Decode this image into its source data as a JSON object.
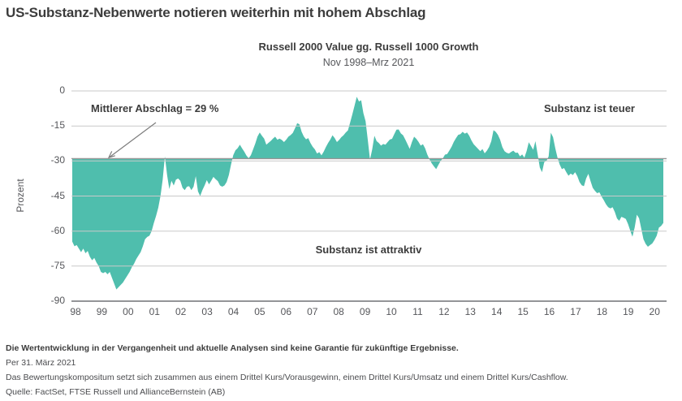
{
  "title": "US-Substanz-Nebenwerte notieren weiterhin mit hohem Abschlag",
  "chart": {
    "subtitle": "Russell 2000 Value gg. Russell 1000 Growth",
    "period": "Nov 1998–Mrz 2021",
    "ylabel": "Prozent",
    "mean_annotation": "Mittlerer Abschlag = 29 %",
    "label_expensive": "Substanz ist teuer",
    "label_attractive": "Substanz ist attraktiv"
  },
  "chart_data": {
    "type": "area",
    "title": "Russell 2000 Value gg. Russell 1000 Growth",
    "subtitle": "Nov 1998–Mrz 2021",
    "ylabel": "Prozent",
    "ylim": [
      -90,
      0
    ],
    "yticks": [
      0,
      -15,
      -30,
      -45,
      -60,
      -75,
      -90
    ],
    "xtick_labels": [
      "98",
      "99",
      "00",
      "01",
      "02",
      "03",
      "04",
      "05",
      "06",
      "07",
      "08",
      "09",
      "10",
      "11",
      "12",
      "13",
      "14",
      "15",
      "16",
      "17",
      "18",
      "19",
      "20"
    ],
    "baseline_mean": -29,
    "period_start": "Nov 1998",
    "period_end": "Mrz 2021",
    "frequency": "monthly",
    "values": [
      -64.5,
      -66.5,
      -66,
      -67.5,
      -69,
      -67.5,
      -69.5,
      -68.5,
      -71,
      -72.5,
      -71.5,
      -73.5,
      -75,
      -77.5,
      -78,
      -77.5,
      -78.5,
      -77.5,
      -80,
      -82.5,
      -85,
      -84,
      -83,
      -82,
      -80.5,
      -79,
      -77.5,
      -75.5,
      -74,
      -72,
      -70.5,
      -69,
      -66.5,
      -63.5,
      -62.5,
      -62,
      -60,
      -56.5,
      -53.5,
      -50,
      -45,
      -38,
      -28,
      -36,
      -42,
      -38.5,
      -40.5,
      -38,
      -37.5,
      -38.5,
      -41.5,
      -42.5,
      -41,
      -40.8,
      -42.5,
      -41,
      -36.5,
      -43,
      -45,
      -42.5,
      -40.5,
      -38.2,
      -40,
      -38.5,
      -36.8,
      -37.8,
      -38.6,
      -40.5,
      -41,
      -40.5,
      -39,
      -36,
      -31.5,
      -27.5,
      -25.4,
      -24.5,
      -23,
      -24.6,
      -26,
      -27.7,
      -28.8,
      -27.5,
      -25,
      -22.5,
      -19.5,
      -17.8,
      -19.2,
      -20.4,
      -23,
      -22.2,
      -21.4,
      -20.4,
      -19.6,
      -20.9,
      -20.4,
      -21,
      -21.9,
      -20.9,
      -19.6,
      -18.9,
      -18,
      -16,
      -13.8,
      -14.3,
      -17.5,
      -19.5,
      -20.7,
      -20.2,
      -22.3,
      -23.9,
      -25,
      -26.8,
      -26.2,
      -27.6,
      -26,
      -24,
      -22.3,
      -20.8,
      -19,
      -20.2,
      -21.9,
      -21,
      -19.8,
      -19,
      -17.8,
      -16.9,
      -13.5,
      -10,
      -6.3,
      -2.5,
      -4.5,
      -4,
      -9.5,
      -13,
      -21,
      -29.4,
      -25,
      -19.2,
      -21.5,
      -22.3,
      -23.4,
      -22.7,
      -23,
      -21.9,
      -20.8,
      -20.5,
      -18.5,
      -16.6,
      -16.5,
      -18.2,
      -19,
      -20.8,
      -22.8,
      -24.8,
      -21.9,
      -19.6,
      -20.5,
      -21.8,
      -23.4,
      -22.8,
      -24.6,
      -27.3,
      -29.3,
      -31,
      -32.3,
      -33.5,
      -31.7,
      -30,
      -28.9,
      -27.3,
      -27,
      -25.5,
      -23.9,
      -21.8,
      -20.2,
      -18.8,
      -18.5,
      -17.5,
      -18.3,
      -17.8,
      -19.2,
      -21.2,
      -22.8,
      -23.8,
      -24.8,
      -25.8,
      -24.9,
      -26.7,
      -25.6,
      -24,
      -21.5,
      -16.8,
      -17.5,
      -18.8,
      -20.9,
      -24,
      -25.8,
      -26.5,
      -26.8,
      -26.1,
      -25.6,
      -26.5,
      -26.4,
      -28,
      -27.2,
      -28.6,
      -25.8,
      -22,
      -23.6,
      -25.2,
      -21.5,
      -27,
      -32.8,
      -34.8,
      -30.5,
      -30,
      -28,
      -17.9,
      -19.8,
      -24.5,
      -28.5,
      -31.5,
      -33.5,
      -33,
      -34.8,
      -36.3,
      -35.4,
      -36,
      -34.8,
      -36.5,
      -39,
      -40.4,
      -40.8,
      -37.5,
      -35.5,
      -38.6,
      -41.5,
      -42.8,
      -43.8,
      -43.4,
      -45.2,
      -46.8,
      -48.5,
      -49.8,
      -50.3,
      -49.8,
      -51.8,
      -54.6,
      -55.6,
      -53.9,
      -54.3,
      -54.8,
      -57,
      -59.8,
      -62.4,
      -58.5,
      -53,
      -54.5,
      -59,
      -63.5,
      -65.5,
      -66.7,
      -66,
      -65.3,
      -63.8,
      -62,
      -58.5,
      -57.8,
      -56.5
    ]
  },
  "footnotes": [
    "Die Wertentwicklung in der Vergangenheit und aktuelle Analysen sind keine Garantie für zukünftige Ergebnisse.",
    "Per 31. März 2021",
    "Das Bewertungskompositum setzt sich zusammen aus einem Drittel Kurs/Vorausgewinn, einem Drittel Kurs/Umsatz und einem Drittel Kurs/Cashflow.",
    "Quelle: FactSet, FTSE Russell und AllianceBernstein (AB)"
  ],
  "colors": {
    "area": "#4fbead",
    "grid": "#c9c9c9",
    "axis": "#55565a",
    "mean_line": "#969696",
    "arrow": "#7d7d7d",
    "text_dark": "#3c3c3c",
    "text_secondary": "#55565a"
  }
}
